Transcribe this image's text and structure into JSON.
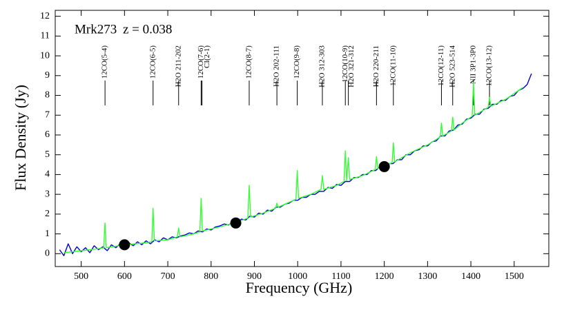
{
  "chart_data": {
    "type": "line",
    "title": "Mrk273",
    "subtitle": "z = 0.038",
    "x_label": "Frequency  (GHz)",
    "y_label": "Flux Density (Jy)",
    "xlim": [
      440,
      1580
    ],
    "ylim": [
      -0.65,
      12.3
    ],
    "xticks": [
      500,
      600,
      700,
      800,
      900,
      1000,
      1100,
      1200,
      1300,
      1400,
      1500
    ],
    "yticks": [
      0,
      1,
      2,
      3,
      4,
      5,
      6,
      7,
      8,
      9,
      10,
      11,
      12
    ],
    "series": [
      {
        "color": "#0000cc",
        "x": [
          450,
          460,
          470,
          480,
          490,
          500,
          510,
          520,
          530,
          540,
          550,
          560,
          570,
          580,
          590,
          600,
          610,
          620,
          630,
          640,
          650,
          660,
          670,
          680,
          690,
          700,
          710,
          720,
          730,
          740,
          750,
          760,
          770,
          780,
          790,
          800,
          810,
          820,
          830,
          840,
          850,
          860,
          870,
          880,
          890,
          900,
          910,
          920,
          930,
          940,
          950,
          960,
          970,
          980,
          990,
          1000,
          1010,
          1020,
          1030,
          1040,
          1050,
          1060,
          1070,
          1080,
          1090,
          1100,
          1110,
          1120,
          1130,
          1140,
          1150,
          1160,
          1170,
          1180,
          1190,
          1200,
          1210,
          1220,
          1230,
          1240,
          1250,
          1260,
          1270,
          1280,
          1290,
          1300,
          1310,
          1320,
          1330,
          1340,
          1350,
          1360,
          1370,
          1380,
          1390,
          1400,
          1410,
          1420,
          1430,
          1440,
          1450,
          1460,
          1470,
          1480,
          1490,
          1500,
          1510,
          1520,
          1530,
          1540
        ],
        "values": [
          0.2,
          -0.1,
          0.5,
          0.0,
          0.35,
          0.1,
          0.3,
          0.05,
          0.4,
          0.2,
          0.35,
          0.15,
          0.45,
          0.3,
          0.5,
          0.35,
          0.55,
          0.4,
          0.6,
          0.45,
          0.65,
          0.5,
          0.7,
          0.6,
          0.8,
          0.7,
          0.85,
          0.8,
          0.9,
          0.95,
          1.05,
          1.0,
          1.15,
          1.1,
          1.25,
          1.2,
          1.35,
          1.4,
          1.5,
          1.45,
          1.6,
          1.55,
          1.75,
          1.7,
          1.9,
          1.85,
          2.05,
          2.0,
          2.2,
          2.15,
          2.35,
          2.35,
          2.5,
          2.55,
          2.7,
          2.7,
          2.85,
          2.85,
          3.0,
          3.0,
          3.15,
          3.15,
          3.35,
          3.3,
          3.5,
          3.45,
          3.65,
          3.65,
          3.85,
          3.85,
          4.0,
          4.0,
          4.2,
          4.2,
          4.4,
          4.35,
          4.55,
          4.55,
          4.75,
          4.75,
          5.0,
          5.0,
          5.2,
          5.25,
          5.45,
          5.45,
          5.65,
          5.7,
          5.95,
          5.95,
          6.2,
          6.25,
          6.5,
          6.55,
          6.8,
          6.85,
          7.05,
          7.05,
          7.3,
          7.35,
          7.55,
          7.55,
          7.75,
          7.75,
          7.95,
          8.0,
          8.25,
          8.35,
          8.55,
          9.1
        ]
      },
      {
        "color": "#33ff33",
        "x": [
          460,
          500,
          540,
          552,
          555,
          558,
          600,
          650,
          663,
          666,
          669,
          700,
          722,
          725,
          728,
          760,
          774,
          777,
          780,
          820,
          860,
          885,
          888,
          891,
          920,
          949,
          952,
          955,
          996,
          999,
          1002,
          1030,
          1054,
          1057,
          1060,
          1090,
          1107,
          1110,
          1113,
          1117,
          1120,
          1150,
          1179,
          1182,
          1185,
          1218,
          1221,
          1224,
          1260,
          1300,
          1329,
          1332,
          1335,
          1355,
          1358,
          1361,
          1380,
          1403,
          1406,
          1409,
          1440,
          1443,
          1446,
          1480,
          1520
        ],
        "values": [
          0.05,
          0.15,
          0.25,
          0.3,
          1.55,
          0.3,
          0.45,
          0.55,
          0.6,
          2.3,
          0.65,
          0.7,
          0.85,
          1.3,
          0.85,
          1.0,
          1.1,
          2.8,
          1.15,
          1.35,
          1.6,
          1.8,
          3.45,
          1.85,
          2.05,
          2.3,
          2.55,
          2.35,
          2.75,
          4.2,
          2.8,
          3.0,
          3.25,
          3.95,
          3.25,
          3.45,
          3.65,
          5.2,
          3.7,
          4.85,
          3.75,
          3.95,
          4.25,
          4.9,
          4.3,
          4.6,
          5.6,
          4.65,
          5.1,
          5.5,
          5.9,
          6.6,
          5.95,
          6.2,
          6.9,
          6.25,
          6.6,
          6.95,
          8.65,
          7.0,
          7.4,
          7.9,
          7.45,
          7.8,
          8.4
        ]
      },
      {
        "type": "scatter",
        "color": "#000000",
        "x": [
          600,
          857,
          1200
        ],
        "values": [
          0.45,
          1.55,
          4.4
        ]
      }
    ],
    "line_labels": [
      {
        "label": "12CO(5-4)",
        "x": 555
      },
      {
        "label": "12CO(6-5)",
        "x": 666
      },
      {
        "label": "H2O 211-202",
        "x": 725
      },
      {
        "label": "12CO(7-6)",
        "x": 777
      },
      {
        "label": "CI(2-1)",
        "x": 779
      },
      {
        "label": "12CO(8-7)",
        "x": 888
      },
      {
        "label": "H2O 202-111",
        "x": 952
      },
      {
        "label": "12CO(9-8)",
        "x": 999
      },
      {
        "label": "H2O 312-303",
        "x": 1057
      },
      {
        "label": "12CO(10-9)",
        "x": 1110
      },
      {
        "label": "H2O 321-312",
        "x": 1117
      },
      {
        "label": "H2O 220-211",
        "x": 1182
      },
      {
        "label": "12CO(11-10)",
        "x": 1221
      },
      {
        "label": "12CO(12-11)",
        "x": 1332
      },
      {
        "label": "H2O 523-514",
        "x": 1358
      },
      {
        "label": "NII 3P1-3P0",
        "x": 1406
      },
      {
        "label": "12CO(13-12)",
        "x": 1443
      }
    ]
  }
}
